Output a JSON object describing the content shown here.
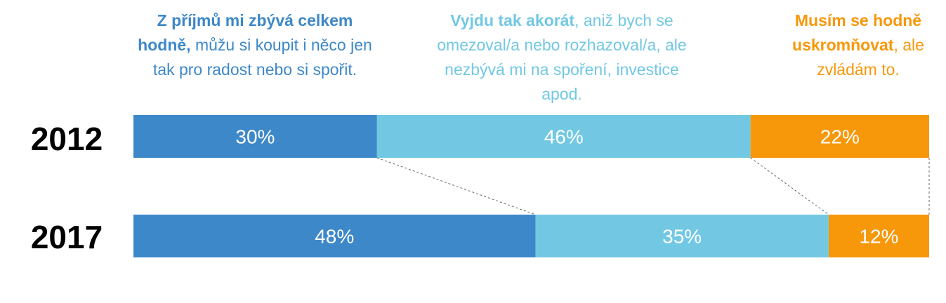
{
  "chart_data": {
    "type": "bar",
    "orientation": "horizontal",
    "stacked": true,
    "percent_stacked": true,
    "categories": [
      "2012",
      "2017"
    ],
    "series": [
      {
        "label_bold": "Z příjmů mi zbývá celkem hodně,",
        "label_rest": "můžu si koupit i něco jen tak pro radost nebo si spořit.",
        "color": "#3d88c8",
        "values": [
          30,
          48
        ],
        "value_labels": [
          "30%",
          "48%"
        ]
      },
      {
        "label_bold": "Vyjdu tak akorát",
        "label_rest": ", aniž bych se omezoval/a nebo rozhazoval/a, ale nezbývá mi na spoření, investice apod.",
        "color": "#72c8e3",
        "values": [
          46,
          35
        ],
        "value_labels": [
          "46%",
          "35%"
        ]
      },
      {
        "label_bold": "Musím se hodně uskromňovat",
        "label_rest": ", ale zvládám to.",
        "color": "#f7970a",
        "values": [
          22,
          12
        ],
        "value_labels": [
          "22%",
          "12%"
        ]
      }
    ],
    "connector_lines": "dashed, between series boundaries of consecutive bars",
    "grid": false,
    "legend": "top, above each segment"
  }
}
